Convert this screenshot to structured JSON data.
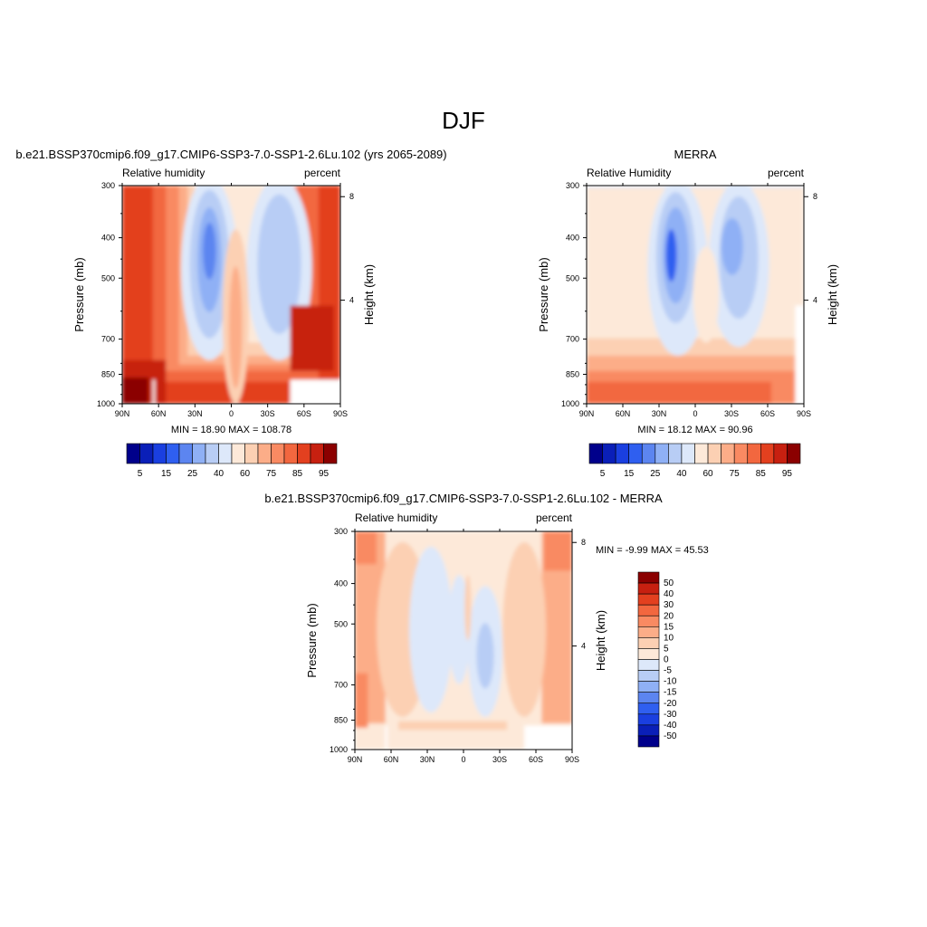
{
  "page": {
    "title": "DJF"
  },
  "colors": {
    "abs_levels": [
      "#00008b",
      "#0a1fb8",
      "#1a3fe0",
      "#2f5ff0",
      "#5c85f0",
      "#8fb0f5",
      "#b8cdf5",
      "#dde8fa",
      "#fde9d9",
      "#fcd0b3",
      "#fcad88",
      "#f98a62",
      "#f2673f",
      "#e3401f",
      "#c72010",
      "#8b0000"
    ],
    "diff_levels": [
      "#00008b",
      "#0a1fb8",
      "#1a3fe0",
      "#2f5ff0",
      "#5c85f0",
      "#8fb0f5",
      "#b8cdf5",
      "#dde8fa",
      "#fde9d9",
      "#fcd0b3",
      "#fcad88",
      "#f98a62",
      "#f2673f",
      "#e3401f",
      "#c72010",
      "#8b0000"
    ]
  },
  "chart_data": [
    {
      "type": "heatmap",
      "panel": "model",
      "title": "b.e21.BSSP370cmip6.f09_g17.CMIP6-SSP3-7.0-SSP1-2.6Lu.102 (yrs 2065-2089)",
      "left_label": "Relative humidity",
      "right_label": "percent",
      "xlabel": "",
      "ylabel": "Pressure (mb)",
      "y2label": "Height (km)",
      "x_ticks": [
        "90N",
        "60N",
        "30N",
        "0",
        "30S",
        "60S",
        "90S"
      ],
      "y_ticks": [
        "300",
        "400",
        "500",
        "700",
        "850",
        "1000"
      ],
      "y_tick_values": [
        300,
        400,
        500,
        700,
        850,
        1000
      ],
      "y2_ticks": [
        "8",
        "4"
      ],
      "y2_tick_values": [
        8,
        4
      ],
      "xlim": [
        90,
        -90
      ],
      "ylim": [
        1000,
        300
      ],
      "stats": "MIN =  18.90  MAX = 108.78",
      "min": 18.9,
      "max": 108.78,
      "colorbar_labels": [
        "5",
        "15",
        "25",
        "40",
        "60",
        "75",
        "85",
        "95"
      ],
      "colorbar_levels": [
        5,
        10,
        15,
        20,
        25,
        30,
        40,
        50,
        60,
        70,
        75,
        80,
        85,
        90,
        95
      ]
    },
    {
      "type": "heatmap",
      "panel": "obs",
      "title": "MERRA",
      "left_label": "Relative Humidity",
      "right_label": "percent",
      "xlabel": "",
      "ylabel": "Pressure (mb)",
      "y2label": "Height (km)",
      "x_ticks": [
        "90N",
        "60N",
        "30N",
        "0",
        "30S",
        "60S",
        "90S"
      ],
      "y_ticks": [
        "300",
        "400",
        "500",
        "700",
        "850",
        "1000"
      ],
      "y_tick_values": [
        300,
        400,
        500,
        700,
        850,
        1000
      ],
      "y2_ticks": [
        "8",
        "4"
      ],
      "y2_tick_values": [
        8,
        4
      ],
      "xlim": [
        90,
        -90
      ],
      "ylim": [
        1000,
        300
      ],
      "stats": "MIN =  18.12  MAX =  90.96",
      "min": 18.12,
      "max": 90.96,
      "colorbar_labels": [
        "5",
        "15",
        "25",
        "40",
        "60",
        "75",
        "85",
        "95"
      ],
      "colorbar_levels": [
        5,
        10,
        15,
        20,
        25,
        30,
        40,
        50,
        60,
        70,
        75,
        80,
        85,
        90,
        95
      ]
    },
    {
      "type": "heatmap",
      "panel": "diff",
      "title": "b.e21.BSSP370cmip6.f09_g17.CMIP6-SSP3-7.0-SSP1-2.6Lu.102 - MERRA",
      "left_label": "Relative humidity",
      "right_label": "percent",
      "xlabel": "",
      "ylabel": "Pressure (mb)",
      "y2label": "Height (km)",
      "x_ticks": [
        "90N",
        "60N",
        "30N",
        "0",
        "30S",
        "60S",
        "90S"
      ],
      "y_ticks": [
        "300",
        "400",
        "500",
        "700",
        "850",
        "1000"
      ],
      "y_tick_values": [
        300,
        400,
        500,
        700,
        850,
        1000
      ],
      "y2_ticks": [
        "8",
        "4"
      ],
      "y2_tick_values": [
        8,
        4
      ],
      "xlim": [
        90,
        -90
      ],
      "ylim": [
        1000,
        300
      ],
      "stats": "MIN =  -9.99  MAX =  45.53",
      "min": -9.99,
      "max": 45.53,
      "colorbar_labels": [
        "50",
        "40",
        "30",
        "20",
        "15",
        "10",
        "5",
        "0",
        "-5",
        "-10",
        "-15",
        "-20",
        "-30",
        "-40",
        "-50"
      ],
      "colorbar_levels": [
        50,
        40,
        30,
        20,
        15,
        10,
        5,
        0,
        -5,
        -10,
        -15,
        -20,
        -30,
        -40,
        -50
      ]
    }
  ]
}
